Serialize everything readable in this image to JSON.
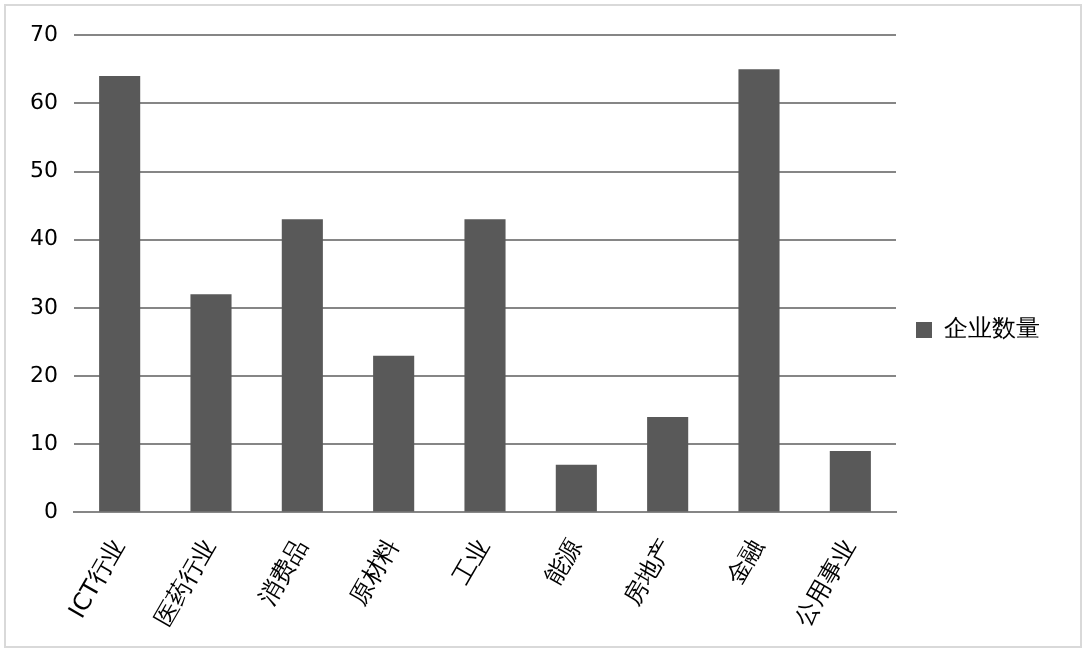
{
  "chart_data": {
    "type": "bar",
    "categories": [
      "ICT行业",
      "医药行业",
      "消费品",
      "原材料",
      "工业",
      "能源",
      "房地产",
      "金融",
      "公用事业"
    ],
    "series": [
      {
        "name": "企业数量",
        "color": "#595959",
        "values": [
          64,
          32,
          43,
          23,
          43,
          7,
          14,
          65,
          9
        ]
      }
    ],
    "ylim": [
      0,
      70
    ],
    "yticks": [
      0,
      10,
      20,
      30,
      40,
      50,
      60,
      70
    ],
    "grid": "y",
    "legend": "right"
  }
}
